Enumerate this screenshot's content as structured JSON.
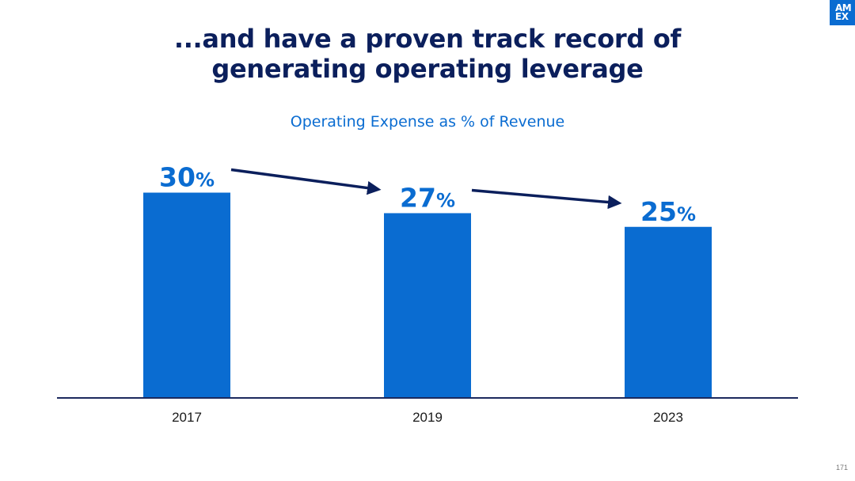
{
  "slide": {
    "title_line1": "...and have a proven track record of",
    "title_line2": "generating operating leverage",
    "page_number": "171"
  },
  "logo": {
    "line1": "AM",
    "line2": "EX"
  },
  "colors": {
    "bar": "#0a6cd1",
    "title": "#0b1f5c",
    "arrow": "#0b1f5c",
    "axis": "#1c2a5e"
  },
  "chart_data": {
    "type": "bar",
    "title": "Operating Expense as % of Revenue",
    "categories": [
      "2017",
      "2019",
      "2023"
    ],
    "values": [
      30,
      27,
      25
    ],
    "data_labels": [
      "30",
      "27",
      "25"
    ],
    "unit_suffix": "%",
    "xlabel": "",
    "ylabel": "",
    "ylim": [
      0,
      30
    ],
    "grid": false,
    "legend": "none",
    "annotations": [
      "arrow 2017 to 2019",
      "arrow 2019 to 2023"
    ]
  }
}
